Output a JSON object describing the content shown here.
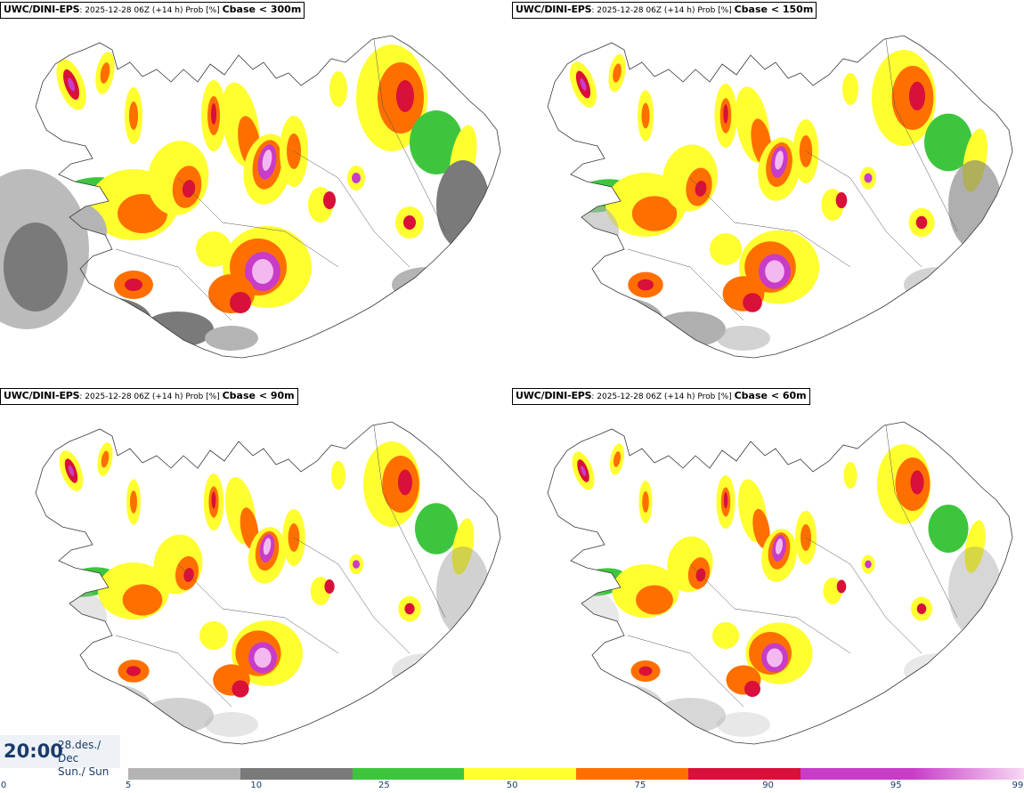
{
  "panels": [
    {
      "model": "UWC/DINI-EPS",
      "meta": ": 2025-12-28 06Z (+14 h) Prob [%] ",
      "param": "Cbase < 300m",
      "coverage": "high"
    },
    {
      "model": "UWC/DINI-EPS",
      "meta": ": 2025-12-28 06Z (+14 h) Prob [%] ",
      "param": "Cbase < 150m",
      "coverage": "mid"
    },
    {
      "model": "UWC/DINI-EPS",
      "meta": ": 2025-12-28 06Z (+14 h) Prob [%] ",
      "param": "Cbase < 90m",
      "coverage": "low"
    },
    {
      "model": "UWC/DINI-EPS",
      "meta": ": 2025-12-28 06Z (+14 h) Prob [%] ",
      "param": "Cbase < 60m",
      "coverage": "lowest"
    }
  ],
  "valid_time": {
    "clock": "20:00",
    "date_line1": "28.des./ Dec",
    "date_line2": "Sun./ Sun"
  },
  "legend": {
    "ticks": [
      "0",
      "5",
      "10",
      "25",
      "50",
      "75",
      "90",
      "95",
      "99"
    ],
    "colors": [
      "#b4b4b4",
      "#7a7a7a",
      "#3dc63d",
      "#ffff30",
      "#ff6f00",
      "#d8103a",
      "#c83cc8",
      "#f4b8f0"
    ],
    "gradient_last": true
  },
  "colors": {
    "land_outline": "#3a3a3a",
    "text": "#1b3c6a"
  }
}
